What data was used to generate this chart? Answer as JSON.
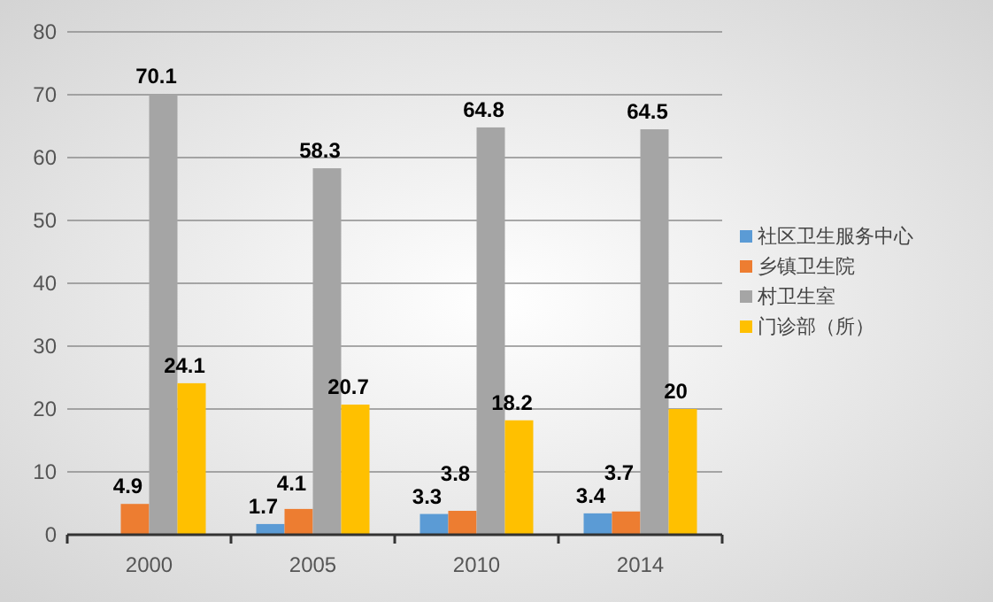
{
  "chart_data": {
    "type": "bar",
    "categories": [
      "2000",
      "2005",
      "2010",
      "2014"
    ],
    "series": [
      {
        "name": "社区卫生服务中心",
        "color": "#5b9bd5",
        "values": [
          null,
          1.7,
          3.3,
          3.4
        ]
      },
      {
        "name": "乡镇卫生院",
        "color": "#ed7d31",
        "values": [
          4.9,
          4.1,
          3.8,
          3.7
        ]
      },
      {
        "name": "村卫生室",
        "color": "#a5a5a5",
        "values": [
          70.1,
          58.3,
          64.8,
          64.5
        ]
      },
      {
        "name": "门诊部（所）",
        "color": "#ffc000",
        "values": [
          24.1,
          20.7,
          18.2,
          20
        ]
      }
    ],
    "ylim": [
      0,
      80
    ],
    "yticks": [
      0,
      10,
      20,
      30,
      40,
      50,
      60,
      70,
      80
    ],
    "grid": "y",
    "legend": "right",
    "data_labels": true
  }
}
